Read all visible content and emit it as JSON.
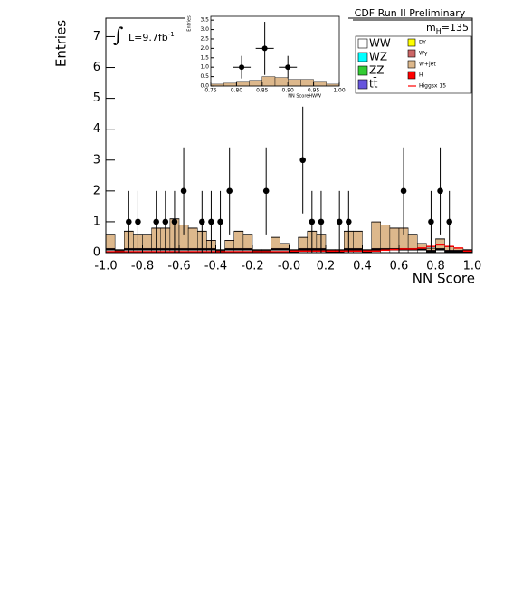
{
  "chart_data": {
    "type": "histogram",
    "title": "CDF Run II Preliminary",
    "mass_label": {
      "text": "m",
      "sub": "H",
      "rest": "=135"
    },
    "lumi_label": {
      "integral": "∫",
      "text": "L=9.7fb",
      "sup": "-1"
    },
    "xlabel": "NN Score",
    "ylabel": "Entries",
    "xlim": [
      -1.0,
      1.0
    ],
    "ylim": [
      0,
      7.6
    ],
    "xticks": [
      {
        "value": -1.0,
        "label": "-1.0"
      },
      {
        "value": -0.8,
        "label": "-0.8"
      },
      {
        "value": -0.6,
        "label": "-0.6"
      },
      {
        "value": -0.4,
        "label": "-0.4"
      },
      {
        "value": -0.2,
        "label": "-0.2"
      },
      {
        "value": 0,
        "label": "-0.0"
      },
      {
        "value": 0.2,
        "label": "0.2"
      },
      {
        "value": 0.4,
        "label": "0.4"
      },
      {
        "value": 0.6,
        "label": "0.6"
      },
      {
        "value": 0.8,
        "label": "0.8"
      },
      {
        "value": 1.0,
        "label": "1.0"
      }
    ],
    "yticks": [
      0,
      1,
      2,
      3,
      4,
      5,
      6,
      7
    ],
    "bins": [
      -1.0,
      -0.95,
      -0.9,
      -0.85,
      -0.8,
      -0.75,
      -0.7,
      -0.65,
      -0.6,
      -0.55,
      -0.5,
      -0.45,
      -0.4,
      -0.35,
      -0.3,
      -0.25,
      -0.2,
      -0.15,
      -0.1,
      -0.05,
      0.0,
      0.05,
      0.1,
      0.15,
      0.2,
      0.25,
      0.3,
      0.35,
      0.4,
      0.45,
      0.5,
      0.55,
      0.6,
      0.65,
      0.7,
      0.75,
      0.8,
      0.85,
      0.9,
      0.95,
      1.0
    ],
    "series": [
      {
        "name": "WW",
        "color": "#ffffff",
        "values": [
          0.08,
          0.02,
          0.08,
          0.08,
          0.08,
          0.08,
          0.08,
          0.08,
          0.08,
          0.08,
          0.08,
          0.08,
          0.02,
          0.08,
          0.08,
          0.08,
          0.02,
          0.02,
          0.08,
          0.08,
          0.02,
          0.08,
          0.08,
          0.08,
          0.02,
          0.02,
          0.08,
          0.08,
          0.02,
          0.08,
          0.08,
          0.08,
          0.08,
          0.08,
          0.08,
          0.02,
          0.08,
          0.02,
          0.02,
          0.02
        ]
      },
      {
        "name": "WZ",
        "color": "#00ffff",
        "values": [
          0.01,
          0.01,
          0.01,
          0.01,
          0.01,
          0.01,
          0.01,
          0.01,
          0.01,
          0.01,
          0.01,
          0.01,
          0.01,
          0.01,
          0.01,
          0.01,
          0.01,
          0.01,
          0.01,
          0.01,
          0.01,
          0.01,
          0.01,
          0.01,
          0.01,
          0.01,
          0.01,
          0.01,
          0.01,
          0.01,
          0.01,
          0.01,
          0.01,
          0.01,
          0.01,
          0.01,
          0.01,
          0.01,
          0.01,
          0.01
        ]
      },
      {
        "name": "ZZ",
        "color": "#33cc33",
        "values": [
          0.01,
          0.01,
          0.01,
          0.01,
          0.01,
          0.01,
          0.01,
          0.01,
          0.01,
          0.01,
          0.01,
          0.01,
          0.01,
          0.01,
          0.01,
          0.01,
          0.01,
          0.01,
          0.01,
          0.01,
          0.01,
          0.01,
          0.01,
          0.01,
          0.01,
          0.01,
          0.01,
          0.01,
          0.01,
          0.01,
          0.01,
          0.01,
          0.01,
          0.01,
          0.01,
          0.01,
          0.01,
          0.01,
          0.01,
          0.01
        ]
      },
      {
        "name": "tt̄",
        "color": "#6655dd",
        "values": [
          0.01,
          0.01,
          0.01,
          0.01,
          0.01,
          0.01,
          0.01,
          0.01,
          0.01,
          0.01,
          0.01,
          0.01,
          0.01,
          0.01,
          0.01,
          0.01,
          0.01,
          0.01,
          0.01,
          0.01,
          0.01,
          0.01,
          0.01,
          0.01,
          0.01,
          0.01,
          0.01,
          0.01,
          0.01,
          0.01,
          0.01,
          0.01,
          0.01,
          0.01,
          0.01,
          0.01,
          0.01,
          0.01,
          0.01,
          0.01
        ]
      },
      {
        "name": "DY",
        "color": "#ffff00",
        "values": [
          0.01,
          0.01,
          0.01,
          0.01,
          0.01,
          0.01,
          0.01,
          0.01,
          0.01,
          0.01,
          0.01,
          0.01,
          0.01,
          0.01,
          0.01,
          0.01,
          0.01,
          0.01,
          0.01,
          0.01,
          0.01,
          0.01,
          0.01,
          0.01,
          0.01,
          0.01,
          0.01,
          0.01,
          0.01,
          0.01,
          0.01,
          0.01,
          0.01,
          0.01,
          0.01,
          0.01,
          0.01,
          0.01,
          0.01,
          0.01
        ]
      },
      {
        "name": "Wγ",
        "color": "#cc6666",
        "values": [
          0.02,
          0.02,
          0.02,
          0.02,
          0.02,
          0.02,
          0.02,
          0.02,
          0.02,
          0.02,
          0.02,
          0.02,
          0.02,
          0.02,
          0.02,
          0.02,
          0.02,
          0.02,
          0.02,
          0.02,
          0.02,
          0.02,
          0.02,
          0.02,
          0.02,
          0.02,
          0.02,
          0.02,
          0.02,
          0.02,
          0.02,
          0.02,
          0.02,
          0.02,
          0.02,
          0.02,
          0.02,
          0.02,
          0.02,
          0.02
        ]
      },
      {
        "name": "W+jet",
        "color": "#ddb88c",
        "values": [
          0.45,
          0.01,
          0.55,
          0.45,
          0.45,
          0.65,
          0.65,
          0.95,
          0.75,
          0.65,
          0.55,
          0.25,
          0.01,
          0.25,
          0.55,
          0.45,
          0.01,
          0.01,
          0.35,
          0.15,
          0.01,
          0.35,
          0.55,
          0.45,
          0.01,
          0.01,
          0.55,
          0.55,
          0.01,
          0.85,
          0.75,
          0.65,
          0.65,
          0.45,
          0.15,
          0.06,
          0.3,
          0.11,
          0.06,
          0.01
        ]
      },
      {
        "name": "H",
        "color": "#ff0000",
        "values": [
          0.01,
          0.01,
          0.01,
          0.01,
          0.01,
          0.01,
          0.01,
          0.01,
          0.01,
          0.01,
          0.01,
          0.01,
          0.01,
          0.01,
          0.01,
          0.01,
          0.01,
          0.01,
          0.01,
          0.01,
          0.01,
          0.01,
          0.01,
          0.01,
          0.01,
          0.01,
          0.01,
          0.01,
          0.01,
          0.01,
          0.01,
          0.01,
          0.01,
          0.01,
          0.01,
          0.01,
          0.01,
          0.01,
          0.01,
          0.01
        ]
      }
    ],
    "signal_line": {
      "name": "Higgsx 15",
      "color": "#ff0000",
      "values": [
        0.03,
        0.03,
        0.03,
        0.03,
        0.03,
        0.03,
        0.03,
        0.03,
        0.03,
        0.03,
        0.03,
        0.03,
        0.03,
        0.03,
        0.03,
        0.03,
        0.03,
        0.03,
        0.03,
        0.03,
        0.05,
        0.05,
        0.05,
        0.05,
        0.05,
        0.05,
        0.05,
        0.05,
        0.05,
        0.05,
        0.08,
        0.1,
        0.12,
        0.12,
        0.15,
        0.2,
        0.25,
        0.2,
        0.15,
        0.05
      ]
    },
    "data_points": {
      "color": "#000000",
      "values": [
        null,
        null,
        1,
        1,
        null,
        1,
        1,
        1,
        2,
        null,
        1,
        1,
        1,
        2,
        null,
        null,
        null,
        2,
        null,
        null,
        null,
        3,
        1,
        1,
        null,
        1,
        1,
        null,
        null,
        null,
        null,
        null,
        2,
        null,
        null,
        1,
        2,
        1,
        null,
        null
      ],
      "errors": [
        null,
        null,
        1,
        1,
        null,
        1,
        1,
        1,
        1.41,
        null,
        1,
        1,
        1,
        1.41,
        null,
        null,
        null,
        1.41,
        null,
        null,
        null,
        1.73,
        1,
        1,
        null,
        1,
        1,
        null,
        null,
        null,
        null,
        null,
        1.41,
        null,
        null,
        1,
        1.41,
        1,
        null,
        null
      ]
    },
    "inset": {
      "xlabel": "NN ScoreHWW",
      "ylabel": "Entries",
      "xlim": [
        0.75,
        1.0
      ],
      "ylim": [
        0,
        3.7
      ],
      "xticks": [
        {
          "value": 0.75,
          "label": "0.75"
        },
        {
          "value": 0.8,
          "label": "0.80"
        },
        {
          "value": 0.85,
          "label": "0.85"
        },
        {
          "value": 0.9,
          "label": "0.90"
        },
        {
          "value": 0.95,
          "label": "0.95"
        },
        {
          "value": 1.0,
          "label": "1.00"
        }
      ],
      "yticks": [
        {
          "value": 0,
          "label": "0.0"
        },
        {
          "value": 0.5,
          "label": "0.5"
        },
        {
          "value": 1.0,
          "label": "1.0"
        },
        {
          "value": 1.5,
          "label": "1.5"
        },
        {
          "value": 2.0,
          "label": "2.0"
        },
        {
          "value": 2.5,
          "label": "2.5"
        },
        {
          "value": 3.0,
          "label": "3.0"
        },
        {
          "value": 3.5,
          "label": "3.5"
        }
      ],
      "bins": [
        0.75,
        0.775,
        0.8,
        0.825,
        0.85,
        0.875,
        0.9,
        0.925,
        0.95,
        0.975,
        1.0
      ],
      "background": {
        "color": "#ddb88c",
        "values": [
          0.1,
          0.15,
          0.2,
          0.3,
          0.5,
          0.45,
          0.35,
          0.35,
          0.2,
          0.1
        ]
      },
      "data_x": [
        0.81,
        0.855,
        0.9
      ],
      "data_values": [
        1,
        2,
        1
      ],
      "data_errors": [
        0.6,
        1.41,
        0.6
      ]
    }
  }
}
